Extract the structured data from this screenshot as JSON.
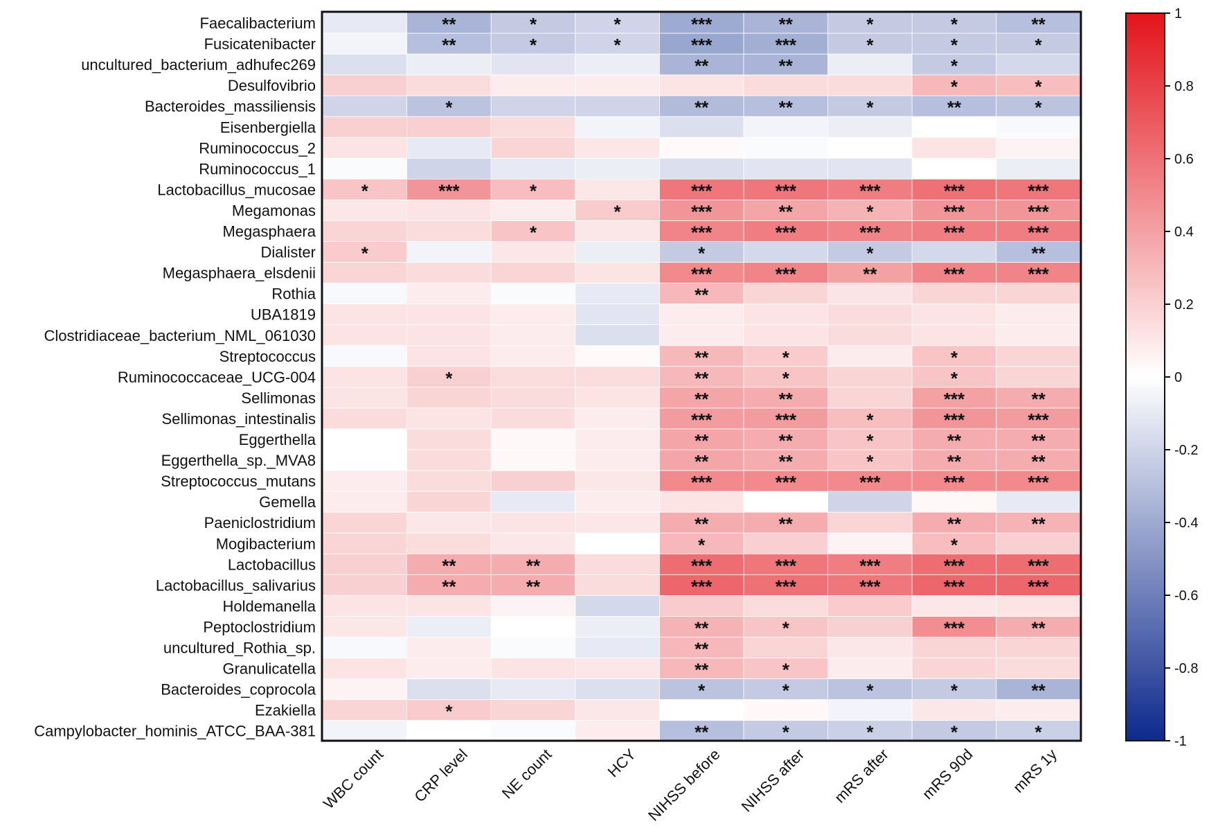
{
  "chart_data": {
    "type": "heatmap",
    "title": "",
    "color_scale": {
      "min": -1,
      "max": 1,
      "low_color": "#0d2a8c",
      "mid_color": "#ffffff",
      "high_color": "#e3131b"
    },
    "colorbar_ticks": [
      "1",
      "0.8",
      "0.6",
      "0.4",
      "0.2",
      "0",
      "-0.2",
      "-0.4",
      "-0.6",
      "-0.8",
      "-1"
    ],
    "columns": [
      "WBC count",
      "CRP level",
      "NE count",
      "HCY",
      "NIHSS before",
      "NIHSS after",
      "mRS after",
      "mRS 90d",
      "mRS 1y"
    ],
    "rows": [
      {
        "name": "Faecalibacterium",
        "values": [
          -0.1,
          -0.35,
          -0.25,
          -0.2,
          -0.4,
          -0.35,
          -0.25,
          -0.25,
          -0.3
        ],
        "stars": [
          "",
          "**",
          "*",
          "*",
          "***",
          "**",
          "*",
          "*",
          "**"
        ]
      },
      {
        "name": "Fusicatenibacter",
        "values": [
          -0.05,
          -0.3,
          -0.25,
          -0.2,
          -0.42,
          -0.38,
          -0.25,
          -0.25,
          -0.25
        ],
        "stars": [
          "",
          "**",
          "*",
          "*",
          "***",
          "***",
          "*",
          "*",
          "*"
        ]
      },
      {
        "name": "uncultured_bacterium_adhufec269",
        "values": [
          -0.15,
          -0.08,
          -0.12,
          -0.08,
          -0.35,
          -0.35,
          -0.08,
          -0.25,
          -0.18
        ],
        "stars": [
          "",
          "",
          "",
          "",
          "**",
          "**",
          "",
          "*",
          ""
        ]
      },
      {
        "name": "Desulfovibrio",
        "values": [
          0.2,
          0.15,
          0.08,
          0.08,
          0.12,
          0.15,
          0.15,
          0.3,
          0.28
        ],
        "stars": [
          "",
          "",
          "",
          "",
          "",
          "",
          "",
          "*",
          "*"
        ]
      },
      {
        "name": "Bacteroides_massiliensis",
        "values": [
          -0.2,
          -0.28,
          -0.2,
          -0.2,
          -0.32,
          -0.3,
          -0.25,
          -0.3,
          -0.28
        ],
        "stars": [
          "",
          "*",
          "",
          "",
          "**",
          "**",
          "*",
          "**",
          "*"
        ]
      },
      {
        "name": "Eisenbergiella",
        "values": [
          0.2,
          0.2,
          0.15,
          -0.05,
          -0.15,
          -0.05,
          -0.08,
          0.0,
          -0.03
        ],
        "stars": [
          "",
          "",
          "",
          "",
          "",
          "",
          "",
          "",
          ""
        ]
      },
      {
        "name": "Ruminococcus_2",
        "values": [
          0.12,
          -0.1,
          0.18,
          0.1,
          0.02,
          -0.02,
          0.0,
          0.12,
          0.05
        ],
        "stars": [
          "",
          "",
          "",
          "",
          "",
          "",
          "",
          "",
          ""
        ]
      },
      {
        "name": "Ruminococcus_1",
        "values": [
          -0.02,
          -0.2,
          -0.1,
          -0.08,
          -0.15,
          -0.12,
          -0.12,
          0.0,
          -0.08
        ],
        "stars": [
          "",
          "",
          "",
          "",
          "",
          "",
          "",
          "",
          ""
        ]
      },
      {
        "name": "Lactobacillus_mucosae",
        "values": [
          0.25,
          0.45,
          0.28,
          0.1,
          0.58,
          0.58,
          0.55,
          0.6,
          0.58
        ],
        "stars": [
          "*",
          "***",
          "*",
          "",
          "***",
          "***",
          "***",
          "***",
          "***"
        ]
      },
      {
        "name": "Megamonas",
        "values": [
          0.1,
          0.12,
          0.08,
          0.22,
          0.45,
          0.38,
          0.32,
          0.45,
          0.45
        ],
        "stars": [
          "",
          "",
          "",
          "*",
          "***",
          "**",
          "*",
          "***",
          "***"
        ]
      },
      {
        "name": "Megasphaera",
        "values": [
          0.18,
          0.15,
          0.25,
          0.1,
          0.52,
          0.55,
          0.52,
          0.55,
          0.55
        ],
        "stars": [
          "",
          "",
          "*",
          "",
          "***",
          "***",
          "***",
          "***",
          "***"
        ]
      },
      {
        "name": "Dialister",
        "values": [
          0.22,
          -0.05,
          0.1,
          -0.08,
          -0.25,
          -0.18,
          -0.25,
          -0.18,
          -0.3
        ],
        "stars": [
          "*",
          "",
          "",
          "",
          "*",
          "",
          "*",
          "",
          "**"
        ]
      },
      {
        "name": "Megasphaera_elsdenii",
        "values": [
          0.18,
          0.15,
          0.18,
          0.12,
          0.5,
          0.52,
          0.4,
          0.52,
          0.52
        ],
        "stars": [
          "",
          "",
          "",
          "",
          "***",
          "***",
          "**",
          "***",
          "***"
        ]
      },
      {
        "name": "Rothia",
        "values": [
          -0.03,
          0.08,
          -0.02,
          -0.1,
          0.3,
          0.18,
          0.12,
          0.18,
          0.18
        ],
        "stars": [
          "",
          "",
          "",
          "",
          "**",
          "",
          "",
          "",
          ""
        ]
      },
      {
        "name": "UBA1819",
        "values": [
          0.12,
          0.12,
          0.08,
          -0.12,
          0.08,
          0.12,
          0.15,
          0.12,
          0.08
        ],
        "stars": [
          "",
          "",
          "",
          "",
          "",
          "",
          "",
          "",
          ""
        ]
      },
      {
        "name": "Clostridiaceae_bacterium_NML_061030",
        "values": [
          0.12,
          0.12,
          0.08,
          -0.15,
          0.08,
          0.12,
          0.15,
          0.12,
          0.08
        ],
        "stars": [
          "",
          "",
          "",
          "",
          "",
          "",
          "",
          "",
          ""
        ]
      },
      {
        "name": "Streptococcus",
        "values": [
          -0.03,
          0.12,
          0.08,
          0.02,
          0.3,
          0.22,
          0.08,
          0.25,
          0.18
        ],
        "stars": [
          "",
          "",
          "",
          "",
          "**",
          "*",
          "",
          "*",
          ""
        ]
      },
      {
        "name": "Ruminococcaceae_UCG-004",
        "values": [
          0.12,
          0.2,
          0.15,
          0.15,
          0.3,
          0.25,
          0.18,
          0.25,
          0.18
        ],
        "stars": [
          "",
          "*",
          "",
          "",
          "**",
          "*",
          "",
          "*",
          ""
        ]
      },
      {
        "name": "Sellimonas",
        "values": [
          0.12,
          0.18,
          0.15,
          0.12,
          0.38,
          0.35,
          0.18,
          0.4,
          0.35
        ],
        "stars": [
          "",
          "",
          "",
          "",
          "**",
          "**",
          "",
          "***",
          "**"
        ]
      },
      {
        "name": "Sellimonas_intestinalis",
        "values": [
          0.15,
          0.12,
          0.15,
          0.08,
          0.42,
          0.42,
          0.28,
          0.45,
          0.42
        ],
        "stars": [
          "",
          "",
          "",
          "",
          "***",
          "***",
          "*",
          "***",
          "***"
        ]
      },
      {
        "name": "Eggerthella",
        "values": [
          0.0,
          0.15,
          0.03,
          0.08,
          0.38,
          0.35,
          0.25,
          0.35,
          0.35
        ],
        "stars": [
          "",
          "",
          "",
          "",
          "**",
          "**",
          "*",
          "**",
          "**"
        ]
      },
      {
        "name": "Eggerthella_sp._MVA8",
        "values": [
          0.0,
          0.15,
          0.03,
          0.08,
          0.38,
          0.35,
          0.25,
          0.35,
          0.35
        ],
        "stars": [
          "",
          "",
          "",
          "",
          "**",
          "**",
          "*",
          "**",
          "**"
        ]
      },
      {
        "name": "Streptococcus_mutans",
        "values": [
          0.08,
          0.15,
          0.2,
          0.1,
          0.5,
          0.5,
          0.5,
          0.5,
          0.5
        ],
        "stars": [
          "",
          "",
          "",
          "",
          "***",
          "***",
          "***",
          "***",
          "***"
        ]
      },
      {
        "name": "Gemella",
        "values": [
          0.08,
          0.18,
          -0.1,
          0.08,
          0.12,
          0.0,
          -0.2,
          0.03,
          -0.1
        ],
        "stars": [
          "",
          "",
          "",
          "",
          "",
          "",
          "",
          "",
          ""
        ]
      },
      {
        "name": "Paeniclostridium",
        "values": [
          0.18,
          0.1,
          0.12,
          0.1,
          0.35,
          0.35,
          0.18,
          0.35,
          0.32
        ],
        "stars": [
          "",
          "",
          "",
          "",
          "**",
          "**",
          "",
          "**",
          "**"
        ]
      },
      {
        "name": "Mogibacterium",
        "values": [
          0.18,
          0.15,
          0.1,
          0.0,
          0.3,
          0.2,
          0.05,
          0.28,
          0.2
        ],
        "stars": [
          "",
          "",
          "",
          "",
          "*",
          "",
          "",
          "*",
          ""
        ]
      },
      {
        "name": "Lactobacillus",
        "values": [
          0.2,
          0.35,
          0.35,
          0.15,
          0.62,
          0.58,
          0.55,
          0.62,
          0.62
        ],
        "stars": [
          "",
          "**",
          "**",
          "",
          "***",
          "***",
          "***",
          "***",
          "***"
        ]
      },
      {
        "name": "Lactobacillus_salivarius",
        "values": [
          0.2,
          0.35,
          0.35,
          0.15,
          0.65,
          0.6,
          0.58,
          0.65,
          0.65
        ],
        "stars": [
          "",
          "**",
          "**",
          "",
          "***",
          "***",
          "***",
          "***",
          "***"
        ]
      },
      {
        "name": "Holdemanella",
        "values": [
          0.12,
          0.12,
          0.05,
          -0.18,
          0.22,
          0.15,
          0.22,
          0.1,
          0.12
        ],
        "stars": [
          "",
          "",
          "",
          "",
          "",
          "",
          "",
          "",
          ""
        ]
      },
      {
        "name": "Peptoclostridium",
        "values": [
          0.1,
          -0.08,
          0.0,
          -0.08,
          0.32,
          0.25,
          0.2,
          0.48,
          0.35
        ],
        "stars": [
          "",
          "",
          "",
          "",
          "**",
          "*",
          "",
          "***",
          "**"
        ]
      },
      {
        "name": "uncultured_Rothia_sp.",
        "values": [
          -0.03,
          0.08,
          -0.02,
          -0.1,
          0.3,
          0.18,
          0.1,
          0.18,
          0.18
        ],
        "stars": [
          "",
          "",
          "",
          "",
          "**",
          "",
          "",
          "",
          ""
        ]
      },
      {
        "name": "Granulicatella",
        "values": [
          0.12,
          0.08,
          0.12,
          0.1,
          0.3,
          0.25,
          0.08,
          0.18,
          0.15
        ],
        "stars": [
          "",
          "",
          "",
          "",
          "**",
          "*",
          "",
          "",
          ""
        ]
      },
      {
        "name": "Bacteroides_coprocola",
        "values": [
          0.05,
          -0.15,
          -0.1,
          -0.15,
          -0.28,
          -0.25,
          -0.28,
          -0.25,
          -0.35
        ],
        "stars": [
          "",
          "",
          "",
          "",
          "*",
          "*",
          "*",
          "*",
          "**"
        ]
      },
      {
        "name": "Ezakiella",
        "values": [
          0.18,
          0.22,
          0.18,
          0.1,
          0.0,
          0.03,
          -0.05,
          0.1,
          0.08
        ],
        "stars": [
          "",
          "*",
          "",
          "",
          "",
          "",
          "",
          "",
          ""
        ]
      },
      {
        "name": "Campylobacter_hominis_ATCC_BAA-381",
        "values": [
          -0.05,
          0.0,
          -0.02,
          0.08,
          -0.3,
          -0.25,
          -0.22,
          -0.25,
          -0.22
        ],
        "stars": [
          "",
          "",
          "",
          "",
          "**",
          "*",
          "*",
          "*",
          "*"
        ]
      }
    ]
  }
}
